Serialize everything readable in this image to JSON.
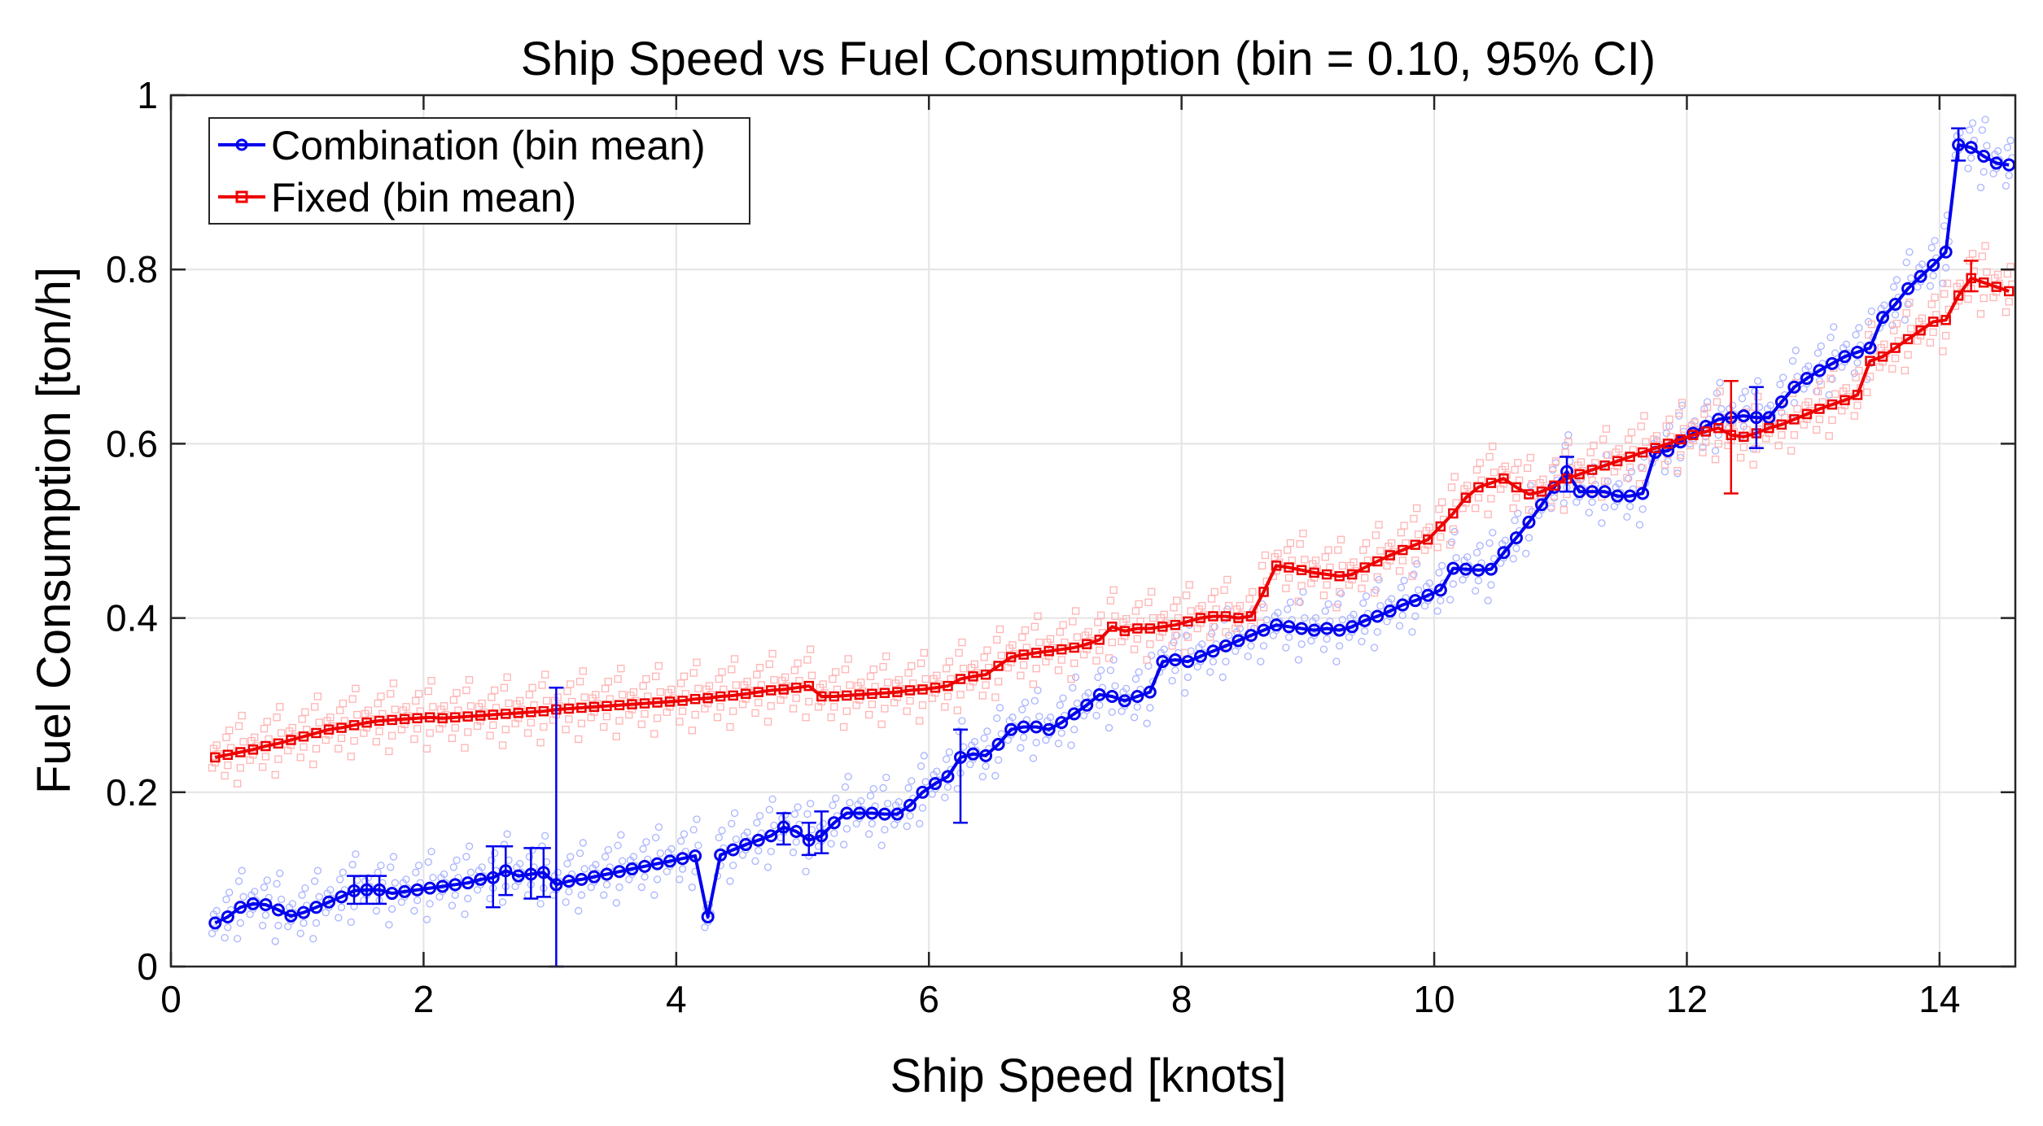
{
  "chart_data": {
    "type": "line",
    "title": "Ship Speed vs Fuel Consumption (bin = 0.10, 95% CI)",
    "xlabel": "Ship Speed [knots]",
    "ylabel": "Fuel Consumption [ton/h]",
    "xlim": [
      0,
      14.6
    ],
    "ylim": [
      0,
      1
    ],
    "grid": true,
    "legend_position": "top-left",
    "x_ticks": [
      0,
      2,
      4,
      6,
      8,
      10,
      12,
      14
    ],
    "x_tick_labels": [
      "0",
      "2",
      "4",
      "6",
      "8",
      "10",
      "12",
      "14"
    ],
    "y_ticks": [
      0,
      0.2,
      0.4,
      0.6,
      0.8,
      1
    ],
    "y_tick_labels": [
      "0",
      "0.2",
      "0.4",
      "0.6",
      "0.8",
      "1"
    ],
    "series": [
      {
        "name": "Combination (bin mean)",
        "color": "#0000ee",
        "marker": "circle",
        "x": [
          0.35,
          0.45,
          0.55,
          0.65,
          0.75,
          0.85,
          0.95,
          1.05,
          1.15,
          1.25,
          1.35,
          1.45,
          1.55,
          1.65,
          1.75,
          1.85,
          1.95,
          2.05,
          2.15,
          2.25,
          2.35,
          2.45,
          2.55,
          2.65,
          2.75,
          2.85,
          2.95,
          3.05,
          3.15,
          3.25,
          3.35,
          3.45,
          3.55,
          3.65,
          3.75,
          3.85,
          3.95,
          4.05,
          4.15,
          4.25,
          4.35,
          4.45,
          4.55,
          4.65,
          4.75,
          4.85,
          4.95,
          5.05,
          5.15,
          5.25,
          5.35,
          5.45,
          5.55,
          5.65,
          5.75,
          5.85,
          5.95,
          6.05,
          6.15,
          6.25,
          6.35,
          6.45,
          6.55,
          6.65,
          6.75,
          6.85,
          6.95,
          7.05,
          7.15,
          7.25,
          7.35,
          7.45,
          7.55,
          7.65,
          7.75,
          7.85,
          7.95,
          8.05,
          8.15,
          8.25,
          8.35,
          8.45,
          8.55,
          8.65,
          8.75,
          8.85,
          8.95,
          9.05,
          9.15,
          9.25,
          9.35,
          9.45,
          9.55,
          9.65,
          9.75,
          9.85,
          9.95,
          10.05,
          10.15,
          10.25,
          10.35,
          10.45,
          10.55,
          10.65,
          10.75,
          10.85,
          10.95,
          11.05,
          11.15,
          11.25,
          11.35,
          11.45,
          11.55,
          11.65,
          11.75,
          11.85,
          11.95,
          12.05,
          12.15,
          12.25,
          12.35,
          12.45,
          12.55,
          12.65,
          12.75,
          12.85,
          12.95,
          13.05,
          13.15,
          13.25,
          13.35,
          13.45,
          13.55,
          13.65,
          13.75,
          13.85,
          13.95,
          14.05,
          14.15,
          14.25,
          14.35,
          14.45,
          14.55
        ],
        "y": [
          0.05,
          0.057,
          0.068,
          0.072,
          0.071,
          0.065,
          0.058,
          0.062,
          0.068,
          0.074,
          0.08,
          0.087,
          0.088,
          0.088,
          0.084,
          0.086,
          0.088,
          0.09,
          0.092,
          0.094,
          0.096,
          0.1,
          0.102,
          0.11,
          0.104,
          0.106,
          0.108,
          0.094,
          0.098,
          0.1,
          0.103,
          0.106,
          0.109,
          0.112,
          0.115,
          0.118,
          0.121,
          0.124,
          0.127,
          0.057,
          0.128,
          0.134,
          0.14,
          0.145,
          0.15,
          0.16,
          0.155,
          0.145,
          0.15,
          0.165,
          0.176,
          0.176,
          0.176,
          0.175,
          0.175,
          0.185,
          0.2,
          0.21,
          0.218,
          0.24,
          0.244,
          0.242,
          0.255,
          0.272,
          0.275,
          0.275,
          0.272,
          0.28,
          0.29,
          0.3,
          0.312,
          0.31,
          0.305,
          0.31,
          0.315,
          0.35,
          0.352,
          0.35,
          0.356,
          0.362,
          0.368,
          0.374,
          0.38,
          0.386,
          0.392,
          0.39,
          0.388,
          0.386,
          0.388,
          0.386,
          0.39,
          0.397,
          0.402,
          0.408,
          0.415,
          0.42,
          0.426,
          0.432,
          0.457,
          0.456,
          0.455,
          0.456,
          0.475,
          0.492,
          0.51,
          0.53,
          0.55,
          0.568,
          0.545,
          0.545,
          0.545,
          0.54,
          0.54,
          0.543,
          0.59,
          0.592,
          0.602,
          0.612,
          0.62,
          0.628,
          0.63,
          0.632,
          0.63,
          0.63,
          0.648,
          0.665,
          0.675,
          0.684,
          0.692,
          0.7,
          0.705,
          0.71,
          0.745,
          0.76,
          0.778,
          0.792,
          0.805,
          0.82,
          0.943,
          0.94,
          0.93,
          0.922,
          0.92
        ]
      },
      {
        "name": "Fixed (bin mean)",
        "color": "#ee0000",
        "marker": "square",
        "x": [
          0.35,
          0.45,
          0.55,
          0.65,
          0.75,
          0.85,
          0.95,
          1.05,
          1.15,
          1.25,
          1.35,
          1.45,
          1.55,
          1.65,
          1.75,
          1.85,
          1.95,
          2.05,
          2.15,
          2.25,
          2.35,
          2.45,
          2.55,
          2.65,
          2.75,
          2.85,
          2.95,
          3.05,
          3.15,
          3.25,
          3.35,
          3.45,
          3.55,
          3.65,
          3.75,
          3.85,
          3.95,
          4.05,
          4.15,
          4.25,
          4.35,
          4.45,
          4.55,
          4.65,
          4.75,
          4.85,
          4.95,
          5.05,
          5.15,
          5.25,
          5.35,
          5.45,
          5.55,
          5.65,
          5.75,
          5.85,
          5.95,
          6.05,
          6.15,
          6.25,
          6.35,
          6.45,
          6.55,
          6.65,
          6.75,
          6.85,
          6.95,
          7.05,
          7.15,
          7.25,
          7.35,
          7.45,
          7.55,
          7.65,
          7.75,
          7.85,
          7.95,
          8.05,
          8.15,
          8.25,
          8.35,
          8.45,
          8.55,
          8.65,
          8.75,
          8.85,
          8.95,
          9.05,
          9.15,
          9.25,
          9.35,
          9.45,
          9.55,
          9.65,
          9.75,
          9.85,
          9.95,
          10.05,
          10.15,
          10.25,
          10.35,
          10.45,
          10.55,
          10.65,
          10.75,
          10.85,
          10.95,
          11.05,
          11.15,
          11.25,
          11.35,
          11.45,
          11.55,
          11.65,
          11.75,
          11.85,
          11.95,
          12.05,
          12.15,
          12.25,
          12.35,
          12.45,
          12.55,
          12.65,
          12.75,
          12.85,
          12.95,
          13.05,
          13.15,
          13.25,
          13.35,
          13.45,
          13.55,
          13.65,
          13.75,
          13.85,
          13.95,
          14.05,
          14.15,
          14.25,
          14.35,
          14.45,
          14.55
        ],
        "y": [
          0.24,
          0.243,
          0.246,
          0.249,
          0.253,
          0.256,
          0.26,
          0.264,
          0.268,
          0.272,
          0.274,
          0.277,
          0.28,
          0.282,
          0.283,
          0.284,
          0.285,
          0.286,
          0.285,
          0.286,
          0.287,
          0.288,
          0.289,
          0.29,
          0.291,
          0.292,
          0.293,
          0.295,
          0.296,
          0.297,
          0.298,
          0.299,
          0.3,
          0.301,
          0.302,
          0.303,
          0.304,
          0.305,
          0.307,
          0.308,
          0.31,
          0.311,
          0.313,
          0.315,
          0.317,
          0.318,
          0.32,
          0.322,
          0.31,
          0.31,
          0.311,
          0.312,
          0.313,
          0.314,
          0.315,
          0.317,
          0.318,
          0.32,
          0.322,
          0.33,
          0.333,
          0.335,
          0.345,
          0.355,
          0.358,
          0.36,
          0.362,
          0.364,
          0.366,
          0.37,
          0.375,
          0.39,
          0.385,
          0.388,
          0.388,
          0.39,
          0.392,
          0.396,
          0.4,
          0.402,
          0.402,
          0.4,
          0.402,
          0.43,
          0.46,
          0.458,
          0.455,
          0.452,
          0.45,
          0.448,
          0.45,
          0.458,
          0.465,
          0.472,
          0.478,
          0.484,
          0.49,
          0.505,
          0.52,
          0.538,
          0.55,
          0.555,
          0.56,
          0.55,
          0.542,
          0.545,
          0.552,
          0.56,
          0.565,
          0.57,
          0.575,
          0.58,
          0.585,
          0.59,
          0.595,
          0.6,
          0.605,
          0.61,
          0.614,
          0.618,
          0.61,
          0.608,
          0.612,
          0.618,
          0.622,
          0.628,
          0.634,
          0.64,
          0.645,
          0.65,
          0.656,
          0.695,
          0.7,
          0.71,
          0.72,
          0.73,
          0.74,
          0.742,
          0.77,
          0.79,
          0.785,
          0.78,
          0.775
        ]
      }
    ],
    "error_bars": [
      {
        "series": "Combination (bin mean)",
        "x": 1.45,
        "low": 0.072,
        "high": 0.104
      },
      {
        "series": "Combination (bin mean)",
        "x": 1.55,
        "low": 0.072,
        "high": 0.104
      },
      {
        "series": "Combination (bin mean)",
        "x": 1.65,
        "low": 0.072,
        "high": 0.104
      },
      {
        "series": "Combination (bin mean)",
        "x": 2.55,
        "low": 0.068,
        "high": 0.138
      },
      {
        "series": "Combination (bin mean)",
        "x": 2.65,
        "low": 0.082,
        "high": 0.138
      },
      {
        "series": "Combination (bin mean)",
        "x": 2.85,
        "low": 0.078,
        "high": 0.136
      },
      {
        "series": "Combination (bin mean)",
        "x": 2.95,
        "low": 0.08,
        "high": 0.136
      },
      {
        "series": "Combination (bin mean)",
        "x": 3.05,
        "low": 0.0,
        "high": 0.32
      },
      {
        "series": "Combination (bin mean)",
        "x": 4.85,
        "low": 0.14,
        "high": 0.176
      },
      {
        "series": "Combination (bin mean)",
        "x": 5.05,
        "low": 0.128,
        "high": 0.165
      },
      {
        "series": "Combination (bin mean)",
        "x": 5.15,
        "low": 0.13,
        "high": 0.178
      },
      {
        "series": "Combination (bin mean)",
        "x": 6.25,
        "low": 0.165,
        "high": 0.272
      },
      {
        "series": "Combination (bin mean)",
        "x": 11.05,
        "low": 0.545,
        "high": 0.585
      },
      {
        "series": "Combination (bin mean)",
        "x": 12.55,
        "low": 0.595,
        "high": 0.665
      },
      {
        "series": "Combination (bin mean)",
        "x": 14.15,
        "low": 0.925,
        "high": 0.962
      },
      {
        "series": "Fixed (bin mean)",
        "x": 12.35,
        "low": 0.543,
        "high": 0.672
      },
      {
        "series": "Fixed (bin mean)",
        "x": 14.25,
        "low": 0.775,
        "high": 0.81
      }
    ]
  }
}
